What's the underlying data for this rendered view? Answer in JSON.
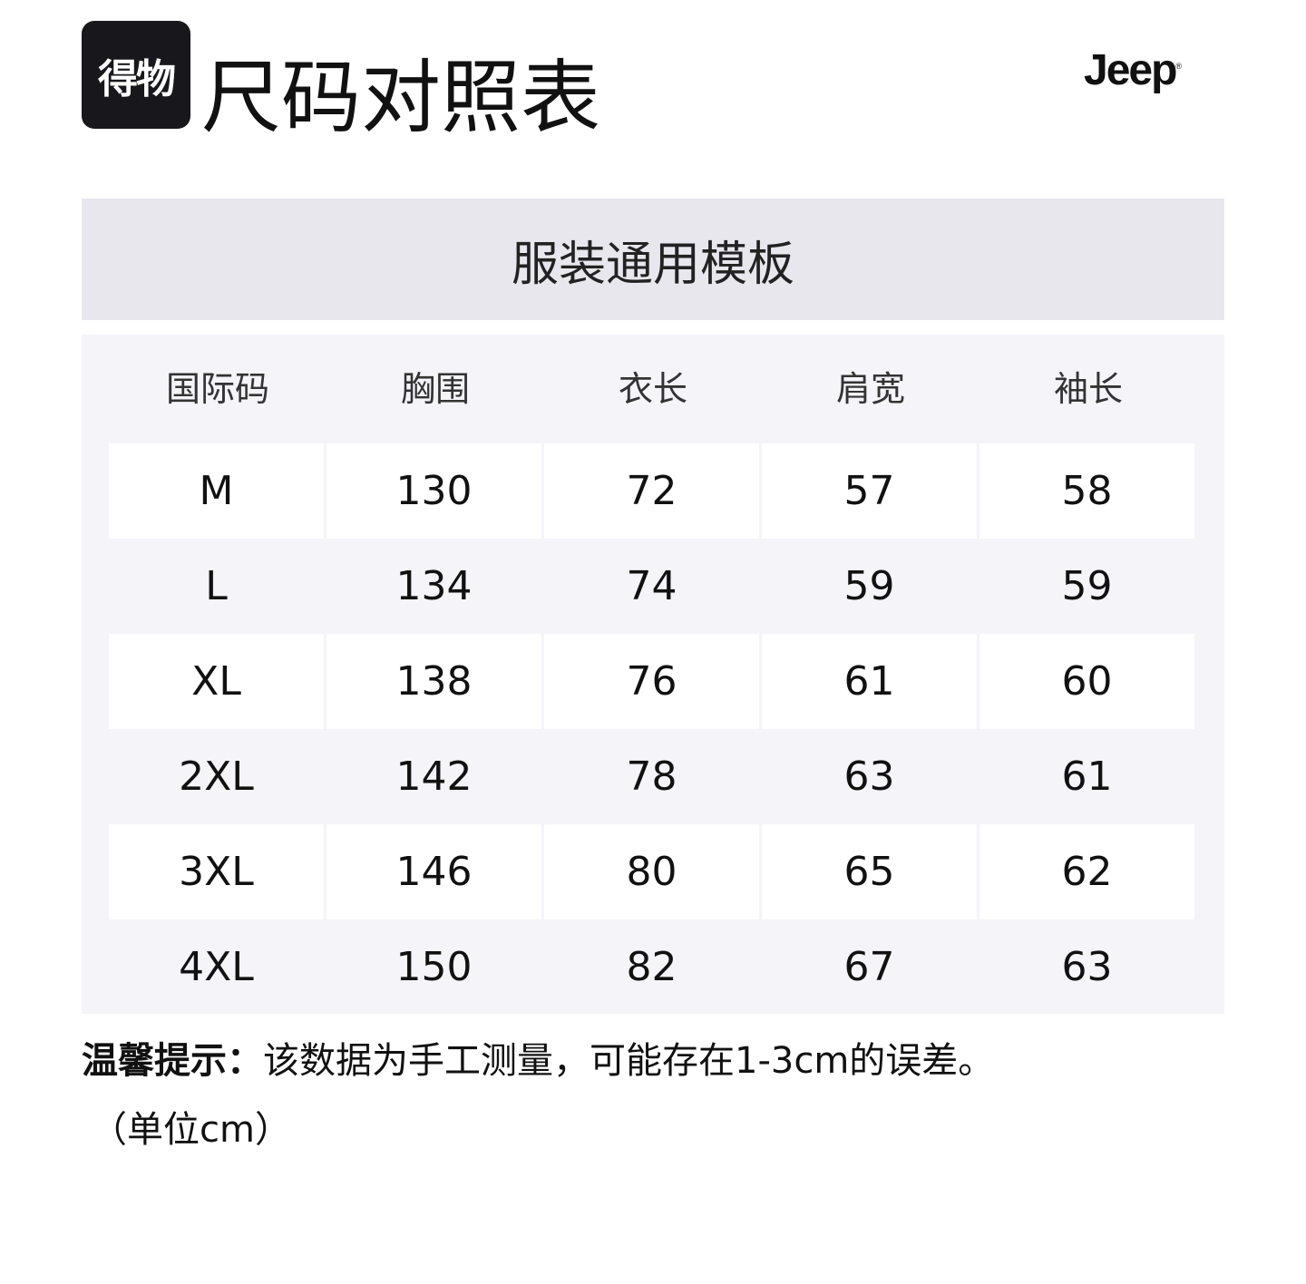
{
  "header": {
    "logo_text": "得物",
    "title": "尺码对照表",
    "brand_logo_text": "Jeep"
  },
  "band_title": "服装通用模板",
  "table": {
    "columns": [
      "国际码",
      "胸围",
      "衣长",
      "肩宽",
      "袖长"
    ],
    "rows": [
      [
        "M",
        "130",
        "72",
        "57",
        "58"
      ],
      [
        "L",
        "134",
        "74",
        "59",
        "59"
      ],
      [
        "XL",
        "138",
        "76",
        "61",
        "60"
      ],
      [
        "2XL",
        "142",
        "78",
        "63",
        "61"
      ],
      [
        "3XL",
        "146",
        "80",
        "65",
        "62"
      ],
      [
        "4XL",
        "150",
        "82",
        "67",
        "63"
      ]
    ]
  },
  "footer": {
    "note_label": "温馨提示：",
    "note_text": "该数据为手工测量，可能存在1-3cm的误差。",
    "unit": "（单位cm）"
  }
}
